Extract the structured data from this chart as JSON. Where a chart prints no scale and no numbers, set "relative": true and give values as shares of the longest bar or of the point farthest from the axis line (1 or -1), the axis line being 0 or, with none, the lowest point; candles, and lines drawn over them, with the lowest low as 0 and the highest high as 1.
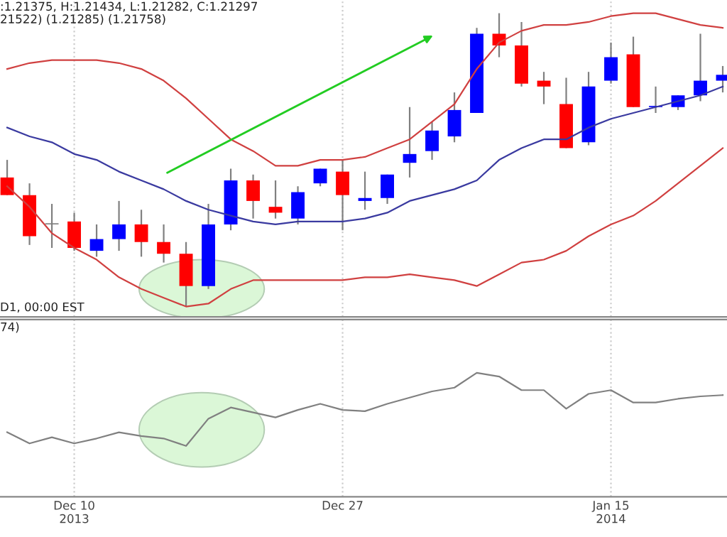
{
  "chart_data": [
    {
      "type": "candlestick",
      "relative": true,
      "grid": "x",
      "tick_labels": false,
      "ohlc": [
        [
          0.44,
          0.5,
          0.38,
          0.38
        ],
        [
          0.38,
          0.42,
          0.21,
          0.24
        ],
        [
          0.28,
          0.35,
          0.2,
          0.28
        ],
        [
          0.29,
          0.32,
          0.19,
          0.2
        ],
        [
          0.19,
          0.28,
          0.17,
          0.23
        ],
        [
          0.23,
          0.36,
          0.19,
          0.28
        ],
        [
          0.28,
          0.33,
          0.17,
          0.22
        ],
        [
          0.22,
          0.28,
          0.15,
          0.18
        ],
        [
          0.18,
          0.22,
          0.0,
          0.07
        ],
        [
          0.07,
          0.35,
          0.06,
          0.28
        ],
        [
          0.28,
          0.47,
          0.26,
          0.43
        ],
        [
          0.43,
          0.45,
          0.3,
          0.36
        ],
        [
          0.34,
          0.43,
          0.3,
          0.32
        ],
        [
          0.3,
          0.41,
          0.28,
          0.39
        ],
        [
          0.42,
          0.47,
          0.41,
          0.47
        ],
        [
          0.46,
          0.5,
          0.26,
          0.38
        ],
        [
          0.36,
          0.46,
          0.33,
          0.37
        ],
        [
          0.37,
          0.45,
          0.35,
          0.45
        ],
        [
          0.49,
          0.68,
          0.44,
          0.52
        ],
        [
          0.53,
          0.63,
          0.5,
          0.6
        ],
        [
          0.58,
          0.73,
          0.56,
          0.67
        ],
        [
          0.66,
          0.95,
          0.66,
          0.93
        ],
        [
          0.93,
          1.0,
          0.85,
          0.89
        ],
        [
          0.89,
          0.97,
          0.75,
          0.76
        ],
        [
          0.77,
          0.8,
          0.69,
          0.75
        ],
        [
          0.69,
          0.78,
          0.54,
          0.54
        ],
        [
          0.56,
          0.8,
          0.55,
          0.75
        ],
        [
          0.77,
          0.9,
          0.76,
          0.85
        ],
        [
          0.86,
          0.92,
          0.68,
          0.68
        ],
        [
          0.68,
          0.75,
          0.66,
          0.68
        ],
        [
          0.68,
          0.72,
          0.67,
          0.72
        ],
        [
          0.72,
          0.93,
          0.7,
          0.77
        ],
        [
          0.77,
          0.82,
          0.73,
          0.79
        ]
      ],
      "colors": [
        "#ff0000",
        "#ff0000",
        "#808080",
        "#ff0000",
        "#0000ff",
        "#0000ff",
        "#ff0000",
        "#ff0000",
        "#ff0000",
        "#0000ff",
        "#0000ff",
        "#ff0000",
        "#ff0000",
        "#0000ff",
        "#0000ff",
        "#ff0000",
        "#0000ff",
        "#0000ff",
        "#0000ff",
        "#0000ff",
        "#0000ff",
        "#0000ff",
        "#ff0000",
        "#ff0000",
        "#ff0000",
        "#ff0000",
        "#0000ff",
        "#0000ff",
        "#ff0000",
        "#0000ff",
        "#0000ff",
        "#0000ff",
        "#0000ff"
      ],
      "series": [
        {
          "type": "line",
          "color": "#d04040",
          "values": [
            0.81,
            0.83,
            0.84,
            0.84,
            0.84,
            0.83,
            0.81,
            0.77,
            0.71,
            0.64,
            0.57,
            0.53,
            0.48,
            0.48,
            0.5,
            0.5,
            0.51,
            0.54,
            0.57,
            0.63,
            0.69,
            0.81,
            0.9,
            0.94,
            0.96,
            0.96,
            0.97,
            0.99,
            1.0,
            1.0,
            0.98,
            0.96,
            0.95
          ]
        },
        {
          "type": "line",
          "color": "#3a3aa0",
          "values": [
            0.61,
            0.58,
            0.56,
            0.52,
            0.5,
            0.46,
            0.43,
            0.4,
            0.36,
            0.33,
            0.31,
            0.29,
            0.28,
            0.29,
            0.29,
            0.29,
            0.3,
            0.32,
            0.36,
            0.38,
            0.4,
            0.43,
            0.5,
            0.54,
            0.57,
            0.57,
            0.61,
            0.64,
            0.66,
            0.68,
            0.7,
            0.72,
            0.75
          ]
        },
        {
          "type": "line",
          "color": "#d04040",
          "values": [
            0.41,
            0.34,
            0.25,
            0.2,
            0.16,
            0.1,
            0.06,
            0.03,
            0.0,
            0.01,
            0.06,
            0.09,
            0.09,
            0.09,
            0.09,
            0.09,
            0.1,
            0.1,
            0.11,
            0.1,
            0.09,
            0.07,
            0.11,
            0.15,
            0.16,
            0.19,
            0.24,
            0.28,
            0.31,
            0.36,
            0.42,
            0.48,
            0.54
          ]
        }
      ],
      "annotations": [
        ":1.21375, H:1.21434, L:1.21282, C:1.21297",
        "21522) (1.21285) (1.21758)",
        "D1, 00:00 EST"
      ]
    },
    {
      "type": "line",
      "relative": true,
      "grid": "x",
      "tick_labels": "x",
      "categories": [
        null,
        null,
        null,
        "Dec 10\n2013",
        null,
        null,
        null,
        null,
        null,
        null,
        null,
        null,
        null,
        null,
        null,
        "Dec 27",
        null,
        null,
        null,
        null,
        null,
        null,
        null,
        null,
        null,
        null,
        null,
        "Jan 15\n2014",
        null,
        null,
        null,
        null,
        null
      ],
      "series": [
        {
          "color": "#808080",
          "values": [
            0.52,
            0.43,
            0.48,
            0.43,
            0.47,
            0.52,
            0.49,
            0.47,
            0.41,
            0.63,
            0.72,
            0.68,
            0.64,
            0.7,
            0.75,
            0.7,
            0.69,
            0.75,
            0.8,
            0.85,
            0.88,
            1.0,
            0.97,
            0.86,
            0.86,
            0.71,
            0.83,
            0.86,
            0.76,
            0.76,
            0.79,
            0.81,
            0.82
          ]
        }
      ],
      "annotations": [
        "74)"
      ]
    }
  ]
}
